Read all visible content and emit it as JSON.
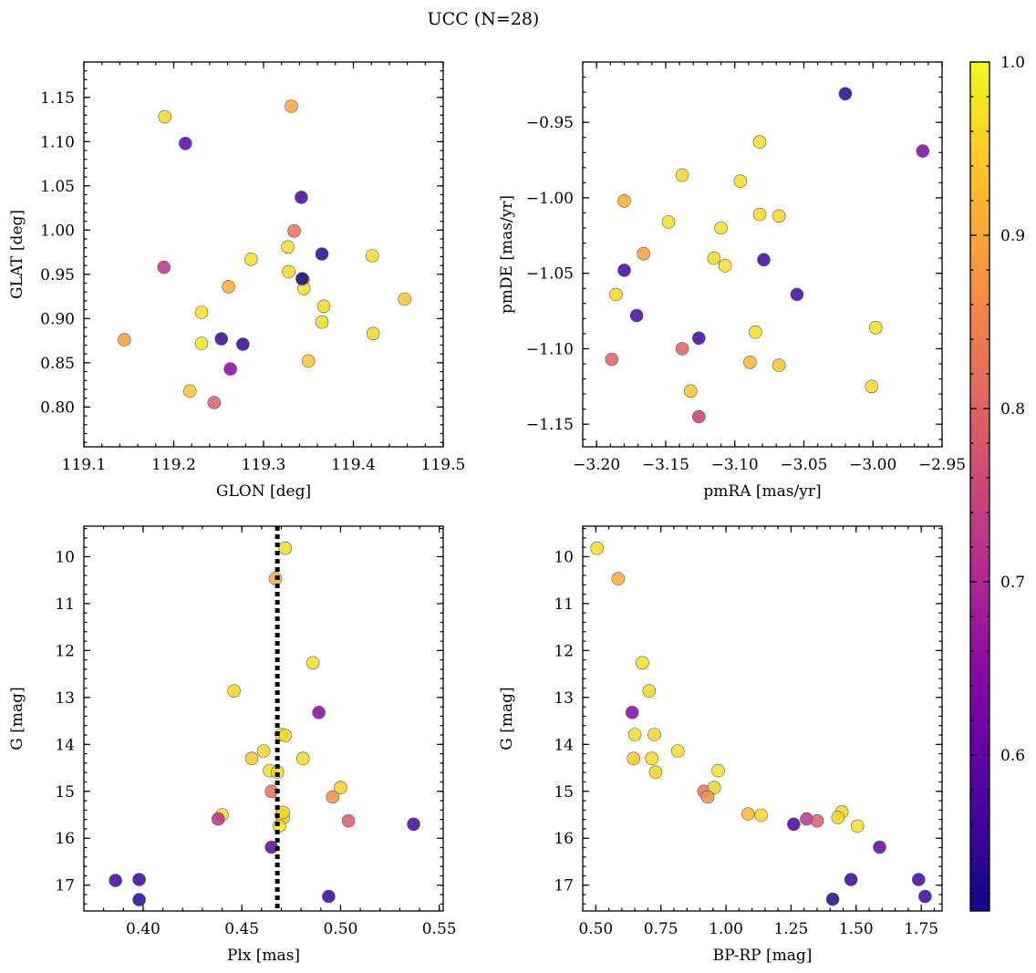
{
  "figure": {
    "title": "UCC (N=28)"
  },
  "colorbar": {
    "colormap": "plasma",
    "range": [
      0.51,
      1.0
    ],
    "ticks": [
      0.6,
      0.7,
      0.8,
      0.9,
      1.0
    ],
    "tick_labels": [
      "0.6",
      "0.7",
      "0.8",
      "0.9",
      "1.0"
    ]
  },
  "chart_data": [
    {
      "type": "scatter",
      "xlabel": "GLON [deg]",
      "ylabel": "GLAT [deg]",
      "xlim": [
        119.1,
        119.5
      ],
      "ylim": [
        0.755,
        1.19
      ],
      "xticks": [
        119.1,
        119.2,
        119.3,
        119.4,
        119.5
      ],
      "xtick_labels": [
        "119.1",
        "119.2",
        "119.3",
        "119.4",
        "119.5"
      ],
      "yticks": [
        0.8,
        0.85,
        0.9,
        0.95,
        1.0,
        1.05,
        1.1,
        1.15
      ],
      "ytick_labels": [
        "0.80",
        "0.85",
        "0.90",
        "0.95",
        "1.00",
        "1.05",
        "1.10",
        "1.15"
      ],
      "y_inverted": false,
      "x": [
        119.19,
        119.331,
        119.213,
        119.342,
        119.334,
        119.365,
        119.327,
        119.421,
        119.286,
        119.189,
        119.328,
        119.344,
        119.261,
        119.345,
        119.457,
        119.367,
        119.231,
        119.365,
        119.145,
        119.253,
        119.422,
        119.231,
        119.277,
        119.35,
        119.263,
        119.218,
        119.245,
        119.343
      ],
      "y": [
        1.128,
        1.14,
        1.098,
        1.037,
        0.999,
        0.973,
        0.981,
        0.971,
        0.967,
        0.958,
        0.953,
        0.944,
        0.936,
        0.934,
        0.922,
        0.914,
        0.907,
        0.896,
        0.876,
        0.877,
        0.883,
        0.872,
        0.871,
        0.852,
        0.843,
        0.818,
        0.805,
        0.945
      ],
      "c": [
        0.96,
        0.9,
        0.6,
        0.56,
        0.82,
        0.53,
        0.97,
        0.97,
        0.97,
        0.72,
        0.96,
        0.95,
        0.91,
        0.97,
        0.94,
        0.96,
        0.97,
        0.97,
        0.89,
        0.55,
        0.96,
        0.97,
        0.54,
        0.94,
        0.64,
        0.94,
        0.79,
        0.52
      ]
    },
    {
      "type": "scatter",
      "xlabel": "pmRA [mas/yr]",
      "ylabel": "pmDE [mas/yr]",
      "xlim": [
        -3.21,
        -2.95
      ],
      "ylim": [
        -1.165,
        -0.91
      ],
      "xticks": [
        -3.2,
        -3.15,
        -3.1,
        -3.05,
        -3.0,
        -2.95
      ],
      "xtick_labels": [
        "−3.20",
        "−3.15",
        "−3.10",
        "−3.05",
        "−3.00",
        "−2.95"
      ],
      "yticks": [
        -1.15,
        -1.1,
        -1.05,
        -1.0,
        -0.95
      ],
      "ytick_labels": [
        "−1.15",
        "−1.10",
        "−1.05",
        "−1.00",
        "−0.95"
      ],
      "y_inverted": false,
      "x": [
        -3.02,
        -2.964,
        -3.082,
        -3.138,
        -3.096,
        -3.18,
        -3.148,
        -3.082,
        -3.068,
        -3.11,
        -3.166,
        -3.115,
        -3.107,
        -3.079,
        -3.18,
        -3.055,
        -3.186,
        -3.171,
        -2.998,
        -3.085,
        -3.126,
        -3.138,
        -3.189,
        -3.089,
        -3.068,
        -3.132,
        -3.001,
        -3.126
      ],
      "y": [
        -0.931,
        -0.969,
        -0.963,
        -0.985,
        -0.989,
        -1.002,
        -1.016,
        -1.011,
        -1.012,
        -1.02,
        -1.037,
        -1.04,
        -1.045,
        -1.041,
        -1.048,
        -1.064,
        -1.064,
        -1.078,
        -1.086,
        -1.089,
        -1.093,
        -1.1,
        -1.107,
        -1.109,
        -1.111,
        -1.128,
        -1.125,
        -1.145
      ],
      "c": [
        0.53,
        0.64,
        0.97,
        0.96,
        0.97,
        0.91,
        0.97,
        0.96,
        0.96,
        0.97,
        0.89,
        0.96,
        0.97,
        0.55,
        0.56,
        0.56,
        0.96,
        0.57,
        0.97,
        0.97,
        0.56,
        0.8,
        0.8,
        0.92,
        0.94,
        0.94,
        0.96,
        0.74
      ]
    },
    {
      "type": "scatter",
      "xlabel": "Plx [mas]",
      "ylabel": "G [mag]",
      "xlim": [
        0.37,
        0.552
      ],
      "ylim": [
        17.55,
        9.35
      ],
      "xticks": [
        0.4,
        0.45,
        0.5,
        0.55
      ],
      "xtick_labels": [
        "0.40",
        "0.45",
        "0.50",
        "0.55"
      ],
      "yticks": [
        10,
        11,
        12,
        13,
        14,
        15,
        16,
        17
      ],
      "ytick_labels": [
        "10",
        "11",
        "12",
        "13",
        "14",
        "15",
        "16",
        "17"
      ],
      "y_inverted": true,
      "vline": {
        "x": 0.468,
        "style": "dotted"
      },
      "x": [
        0.472,
        0.467,
        0.486,
        0.446,
        0.489,
        0.47,
        0.472,
        0.455,
        0.481,
        0.461,
        0.464,
        0.468,
        0.5,
        0.465,
        0.496,
        0.44,
        0.47,
        0.471,
        0.438,
        0.504,
        0.537,
        0.469,
        0.465,
        0.398,
        0.386,
        0.494,
        0.398,
        0.471
      ],
      "y": [
        9.82,
        10.47,
        12.26,
        12.86,
        13.32,
        13.79,
        13.81,
        14.3,
        14.3,
        14.14,
        14.56,
        14.59,
        14.92,
        15.0,
        15.12,
        15.5,
        15.51,
        15.56,
        15.59,
        15.63,
        15.7,
        15.74,
        16.19,
        16.88,
        16.9,
        17.24,
        17.31,
        15.45
      ],
      "c": [
        0.97,
        0.91,
        0.97,
        0.96,
        0.64,
        0.97,
        0.96,
        0.94,
        0.97,
        0.96,
        0.97,
        0.97,
        0.95,
        0.82,
        0.87,
        0.96,
        0.96,
        0.96,
        0.72,
        0.79,
        0.56,
        0.97,
        0.6,
        0.55,
        0.56,
        0.55,
        0.53,
        0.96
      ]
    },
    {
      "type": "scatter",
      "xlabel": "BP-RP [mag]",
      "ylabel": "G [mag]",
      "xlim": [
        0.45,
        1.83
      ],
      "ylim": [
        17.55,
        9.35
      ],
      "xticks": [
        0.5,
        0.75,
        1.0,
        1.25,
        1.5,
        1.75
      ],
      "xtick_labels": [
        "0.50",
        "0.75",
        "1.00",
        "1.25",
        "1.50",
        "1.75"
      ],
      "yticks": [
        10,
        11,
        12,
        13,
        14,
        15,
        16,
        17
      ],
      "ytick_labels": [
        "10",
        "11",
        "12",
        "13",
        "14",
        "15",
        "16",
        "17"
      ],
      "y_inverted": true,
      "x": [
        0.505,
        0.586,
        0.679,
        0.705,
        0.64,
        0.65,
        0.725,
        0.645,
        0.715,
        0.73,
        0.815,
        0.97,
        0.915,
        0.955,
        0.93,
        1.085,
        1.135,
        1.445,
        1.31,
        1.35,
        1.43,
        1.505,
        1.26,
        1.59,
        1.48,
        1.74,
        1.41,
        1.765
      ],
      "y": [
        9.82,
        10.47,
        12.26,
        12.86,
        13.32,
        13.79,
        13.79,
        14.3,
        14.3,
        14.59,
        14.14,
        14.56,
        15.0,
        14.92,
        15.12,
        15.48,
        15.51,
        15.44,
        15.59,
        15.63,
        15.56,
        15.74,
        15.7,
        16.19,
        16.88,
        16.88,
        17.3,
        17.24
      ],
      "c": [
        0.97,
        0.91,
        0.97,
        0.96,
        0.64,
        0.97,
        0.96,
        0.94,
        0.97,
        0.96,
        0.97,
        0.97,
        0.82,
        0.96,
        0.87,
        0.92,
        0.96,
        0.96,
        0.72,
        0.79,
        0.96,
        0.97,
        0.56,
        0.6,
        0.55,
        0.56,
        0.53,
        0.55
      ]
    }
  ]
}
